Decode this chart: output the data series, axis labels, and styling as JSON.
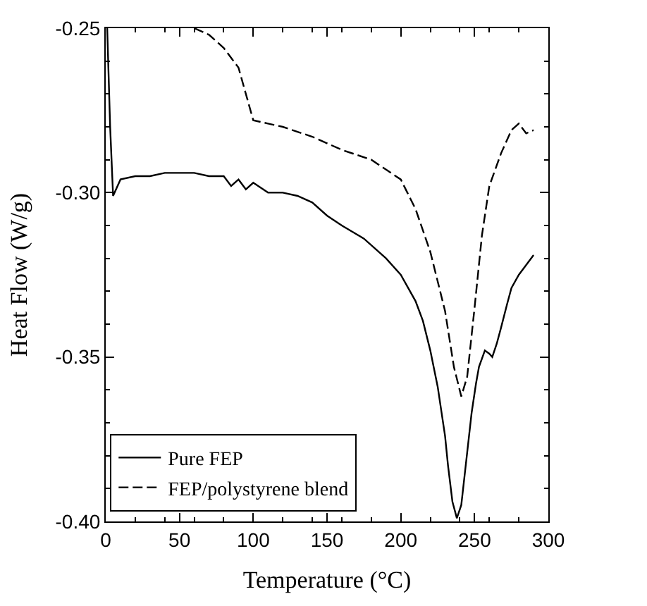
{
  "chart_data": {
    "type": "line",
    "xlabel": "Temperature (°C)",
    "ylabel": "Heat Flow (W/g)",
    "xlim": [
      0,
      300
    ],
    "ylim": [
      -0.4,
      -0.25
    ],
    "xticks": [
      0,
      50,
      100,
      150,
      200,
      250,
      300
    ],
    "yticks": [
      {
        "value": -0.4,
        "label": "-0.40"
      },
      -0.35,
      {
        "value": -0.3,
        "label": "-0.30"
      },
      -0.25
    ],
    "legend": "bottom left",
    "marker": "none",
    "series": [
      {
        "name": "Pure FEP",
        "color": "#000000",
        "line_style": "solid",
        "x": [
          1,
          3,
          5,
          10,
          20,
          30,
          40,
          50,
          60,
          70,
          80,
          85,
          90,
          95,
          100,
          110,
          120,
          130,
          140,
          150,
          160,
          175,
          190,
          200,
          210,
          215,
          220,
          225,
          230,
          232,
          235,
          238,
          241,
          243,
          246,
          248,
          251,
          253,
          257,
          260,
          262,
          265,
          268,
          272,
          275,
          280,
          285,
          290
        ],
        "values": [
          -0.25,
          -0.28,
          -0.301,
          -0.296,
          -0.295,
          -0.295,
          -0.294,
          -0.294,
          -0.294,
          -0.295,
          -0.295,
          -0.298,
          -0.296,
          -0.299,
          -0.297,
          -0.3,
          -0.3,
          -0.301,
          -0.303,
          -0.307,
          -0.31,
          -0.314,
          -0.32,
          -0.325,
          -0.333,
          -0.339,
          -0.348,
          -0.359,
          -0.374,
          -0.383,
          -0.394,
          -0.399,
          -0.395,
          -0.387,
          -0.375,
          -0.367,
          -0.358,
          -0.353,
          -0.348,
          -0.349,
          -0.35,
          -0.346,
          -0.341,
          -0.334,
          -0.329,
          -0.325,
          -0.322,
          -0.319
        ]
      },
      {
        "name": "FEP/polystyrene blend",
        "color": "#000000",
        "line_style": "dashed",
        "x": [
          60,
          70,
          80,
          90,
          95,
          100,
          110,
          120,
          140,
          160,
          180,
          200,
          210,
          220,
          230,
          236,
          241,
          245,
          250,
          255,
          260,
          268,
          275,
          280,
          285,
          290
        ],
        "values": [
          -0.25,
          -0.252,
          -0.256,
          -0.262,
          -0.27,
          -0.278,
          -0.279,
          -0.28,
          -0.283,
          -0.287,
          -0.29,
          -0.296,
          -0.305,
          -0.318,
          -0.336,
          -0.353,
          -0.362,
          -0.356,
          -0.335,
          -0.313,
          -0.298,
          -0.288,
          -0.281,
          -0.279,
          -0.282,
          -0.281
        ]
      }
    ]
  }
}
